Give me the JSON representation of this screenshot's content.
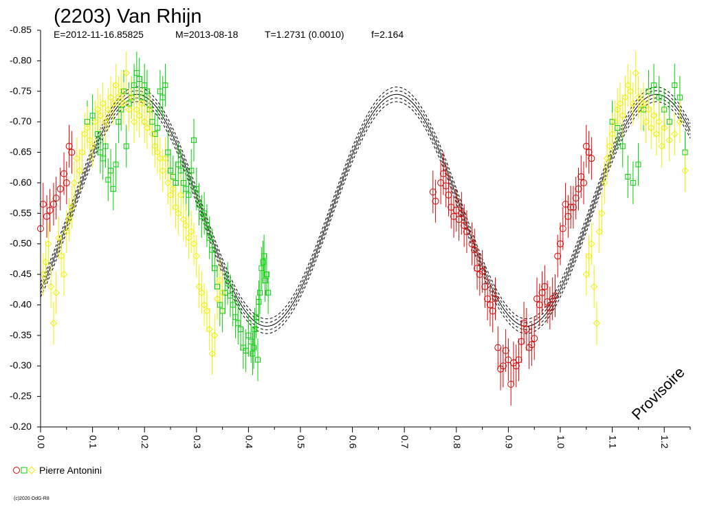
{
  "chart_data": {
    "type": "scatter",
    "title": "(2203) Van Rhijn",
    "subtitle_parts": [
      "E=2012-11-16.85825",
      "M=2013-08-18",
      "T=1.2731 (0.0010)",
      "f=2.164"
    ],
    "xlim": [
      0.0,
      1.25
    ],
    "ylim": [
      -0.85,
      -0.2
    ],
    "y_inverted": true,
    "x_ticks": [
      "0.0",
      "0.1",
      "0.2",
      "0.3",
      "0.4",
      "0.5",
      "0.6",
      "0.7",
      "0.8",
      "0.9",
      "1.0",
      "1.1",
      "1.2"
    ],
    "y_ticks": [
      "-0.85",
      "-0.80",
      "-0.75",
      "-0.70",
      "-0.65",
      "-0.60",
      "-0.55",
      "-0.50",
      "-0.45",
      "-0.40",
      "-0.35",
      "-0.30",
      "-0.25",
      "-0.20"
    ],
    "legend": {
      "label": "Pierre Antonini",
      "placement": "bottom-left"
    },
    "watermark": "Provisoire",
    "copyright": "(c)2020 OdG-R8",
    "fit_model": {
      "description": "fourier fit curve with uncertainty envelopes",
      "mean": -0.555,
      "amplitude": 0.19,
      "max_phase": 0.185,
      "second_harmonic_amp": 0.0,
      "envelope_offsets": [
        -0.012,
        -0.006,
        0.006,
        0.012
      ]
    },
    "series": [
      {
        "marker": "circle",
        "color": "#e00000",
        "points": [
          [
            0.0,
            -0.525
          ],
          [
            0.005,
            -0.565
          ],
          [
            0.012,
            -0.545
          ],
          [
            0.018,
            -0.555
          ],
          [
            0.025,
            -0.565
          ],
          [
            0.03,
            -0.575
          ],
          [
            0.038,
            -0.59
          ],
          [
            0.045,
            -0.615
          ],
          [
            0.05,
            -0.6
          ],
          [
            0.055,
            -0.66
          ],
          [
            0.06,
            -0.65
          ],
          [
            0.755,
            -0.585
          ],
          [
            0.76,
            -0.57
          ],
          [
            0.77,
            -0.6
          ],
          [
            0.775,
            -0.615
          ],
          [
            0.78,
            -0.595
          ],
          [
            0.785,
            -0.58
          ],
          [
            0.79,
            -0.56
          ],
          [
            0.795,
            -0.545
          ],
          [
            0.8,
            -0.555
          ],
          [
            0.805,
            -0.54
          ],
          [
            0.81,
            -0.55
          ],
          [
            0.815,
            -0.53
          ],
          [
            0.82,
            -0.52
          ],
          [
            0.83,
            -0.5
          ],
          [
            0.835,
            -0.49
          ],
          [
            0.84,
            -0.46
          ],
          [
            0.845,
            -0.45
          ],
          [
            0.85,
            -0.455
          ],
          [
            0.855,
            -0.43
          ],
          [
            0.86,
            -0.41
          ],
          [
            0.865,
            -0.4
          ],
          [
            0.87,
            -0.39
          ],
          [
            0.875,
            -0.41
          ],
          [
            0.88,
            -0.33
          ],
          [
            0.885,
            -0.295
          ],
          [
            0.89,
            -0.3
          ],
          [
            0.895,
            -0.325
          ],
          [
            0.9,
            -0.31
          ],
          [
            0.905,
            -0.27
          ],
          [
            0.91,
            -0.305
          ],
          [
            0.915,
            -0.3
          ],
          [
            0.92,
            -0.31
          ],
          [
            0.925,
            -0.34
          ],
          [
            0.93,
            -0.37
          ],
          [
            0.935,
            -0.36
          ],
          [
            0.94,
            -0.33
          ],
          [
            0.945,
            -0.335
          ],
          [
            0.95,
            -0.345
          ],
          [
            0.955,
            -0.41
          ],
          [
            0.96,
            -0.4
          ],
          [
            0.965,
            -0.42
          ],
          [
            0.97,
            -0.43
          ],
          [
            0.975,
            -0.405
          ],
          [
            0.98,
            -0.395
          ],
          [
            0.985,
            -0.41
          ],
          [
            0.99,
            -0.415
          ],
          [
            0.995,
            -0.48
          ],
          [
            1.0,
            -0.5
          ],
          [
            1.005,
            -0.525
          ],
          [
            1.01,
            -0.565
          ],
          [
            1.015,
            -0.545
          ],
          [
            1.02,
            -0.56
          ],
          [
            1.025,
            -0.56
          ],
          [
            1.03,
            -0.575
          ],
          [
            1.035,
            -0.59
          ],
          [
            1.04,
            -0.61
          ],
          [
            1.045,
            -0.6
          ],
          [
            1.05,
            -0.66
          ],
          [
            1.055,
            -0.65
          ],
          [
            1.06,
            -0.64
          ]
        ]
      },
      {
        "marker": "square",
        "color": "#00d000",
        "points": [
          [
            0.09,
            -0.7
          ],
          [
            0.1,
            -0.71
          ],
          [
            0.11,
            -0.68
          ],
          [
            0.115,
            -0.65
          ],
          [
            0.12,
            -0.64
          ],
          [
            0.125,
            -0.66
          ],
          [
            0.13,
            -0.605
          ],
          [
            0.135,
            -0.62
          ],
          [
            0.14,
            -0.59
          ],
          [
            0.145,
            -0.63
          ],
          [
            0.15,
            -0.7
          ],
          [
            0.155,
            -0.72
          ],
          [
            0.16,
            -0.75
          ],
          [
            0.165,
            -0.66
          ],
          [
            0.17,
            -0.73
          ],
          [
            0.175,
            -0.74
          ],
          [
            0.18,
            -0.76
          ],
          [
            0.185,
            -0.78
          ],
          [
            0.19,
            -0.77
          ],
          [
            0.195,
            -0.74
          ],
          [
            0.2,
            -0.76
          ],
          [
            0.205,
            -0.75
          ],
          [
            0.21,
            -0.72
          ],
          [
            0.215,
            -0.7
          ],
          [
            0.22,
            -0.68
          ],
          [
            0.225,
            -0.69
          ],
          [
            0.23,
            -0.75
          ],
          [
            0.235,
            -0.74
          ],
          [
            0.24,
            -0.76
          ],
          [
            0.245,
            -0.65
          ],
          [
            0.25,
            -0.62
          ],
          [
            0.255,
            -0.61
          ],
          [
            0.26,
            -0.6
          ],
          [
            0.265,
            -0.63
          ],
          [
            0.27,
            -0.62
          ],
          [
            0.275,
            -0.6
          ],
          [
            0.28,
            -0.59
          ],
          [
            0.285,
            -0.58
          ],
          [
            0.29,
            -0.62
          ],
          [
            0.295,
            -0.67
          ],
          [
            0.3,
            -0.59
          ],
          [
            0.305,
            -0.565
          ],
          [
            0.31,
            -0.545
          ],
          [
            0.315,
            -0.55
          ],
          [
            0.32,
            -0.53
          ],
          [
            0.325,
            -0.51
          ],
          [
            0.33,
            -0.49
          ],
          [
            0.335,
            -0.46
          ],
          [
            0.34,
            -0.43
          ],
          [
            0.345,
            -0.4
          ],
          [
            0.35,
            -0.39
          ],
          [
            0.355,
            -0.42
          ],
          [
            0.36,
            -0.435
          ],
          [
            0.365,
            -0.415
          ],
          [
            0.37,
            -0.4
          ],
          [
            0.375,
            -0.38
          ],
          [
            0.38,
            -0.37
          ],
          [
            0.385,
            -0.36
          ],
          [
            0.39,
            -0.33
          ],
          [
            0.395,
            -0.325
          ],
          [
            0.4,
            -0.35
          ],
          [
            0.405,
            -0.34
          ],
          [
            0.408,
            -0.32
          ],
          [
            0.41,
            -0.33
          ],
          [
            0.412,
            -0.36
          ],
          [
            0.415,
            -0.38
          ],
          [
            0.418,
            -0.31
          ],
          [
            0.42,
            -0.405
          ],
          [
            0.422,
            -0.42
          ],
          [
            0.425,
            -0.46
          ],
          [
            0.428,
            -0.47
          ],
          [
            0.43,
            -0.48
          ],
          [
            0.432,
            -0.44
          ],
          [
            0.435,
            -0.45
          ],
          [
            0.438,
            -0.42
          ],
          [
            1.1,
            -0.7
          ],
          [
            1.11,
            -0.69
          ],
          [
            1.12,
            -0.66
          ],
          [
            1.13,
            -0.61
          ],
          [
            1.14,
            -0.6
          ],
          [
            1.15,
            -0.63
          ],
          [
            1.16,
            -0.72
          ],
          [
            1.17,
            -0.75
          ],
          [
            1.18,
            -0.76
          ],
          [
            1.19,
            -0.74
          ],
          [
            1.2,
            -0.72
          ],
          [
            1.21,
            -0.7
          ],
          [
            1.22,
            -0.76
          ],
          [
            1.23,
            -0.74
          ],
          [
            1.24,
            -0.65
          ]
        ]
      },
      {
        "marker": "diamond",
        "color": "#f0f000",
        "points": [
          [
            0.005,
            -0.45
          ],
          [
            0.01,
            -0.47
          ],
          [
            0.015,
            -0.5
          ],
          [
            0.02,
            -0.43
          ],
          [
            0.025,
            -0.37
          ],
          [
            0.03,
            -0.42
          ],
          [
            0.035,
            -0.51
          ],
          [
            0.04,
            -0.48
          ],
          [
            0.045,
            -0.45
          ],
          [
            0.05,
            -0.52
          ],
          [
            0.055,
            -0.54
          ],
          [
            0.06,
            -0.56
          ],
          [
            0.065,
            -0.6
          ],
          [
            0.07,
            -0.64
          ],
          [
            0.075,
            -0.62
          ],
          [
            0.08,
            -0.65
          ],
          [
            0.085,
            -0.68
          ],
          [
            0.09,
            -0.69
          ],
          [
            0.095,
            -0.67
          ],
          [
            0.1,
            -0.66
          ],
          [
            0.105,
            -0.7
          ],
          [
            0.11,
            -0.72
          ],
          [
            0.115,
            -0.71
          ],
          [
            0.12,
            -0.73
          ],
          [
            0.125,
            -0.7
          ],
          [
            0.13,
            -0.72
          ],
          [
            0.135,
            -0.74
          ],
          [
            0.14,
            -0.73
          ],
          [
            0.145,
            -0.76
          ],
          [
            0.15,
            -0.74
          ],
          [
            0.155,
            -0.75
          ],
          [
            0.16,
            -0.73
          ],
          [
            0.165,
            -0.78
          ],
          [
            0.17,
            -0.72
          ],
          [
            0.175,
            -0.74
          ],
          [
            0.18,
            -0.7
          ],
          [
            0.185,
            -0.72
          ],
          [
            0.19,
            -0.71
          ],
          [
            0.195,
            -0.73
          ],
          [
            0.2,
            -0.7
          ],
          [
            0.205,
            -0.69
          ],
          [
            0.21,
            -0.72
          ],
          [
            0.215,
            -0.68
          ],
          [
            0.22,
            -0.66
          ],
          [
            0.225,
            -0.65
          ],
          [
            0.23,
            -0.64
          ],
          [
            0.235,
            -0.62
          ],
          [
            0.24,
            -0.64
          ],
          [
            0.245,
            -0.6
          ],
          [
            0.25,
            -0.58
          ],
          [
            0.255,
            -0.59
          ],
          [
            0.26,
            -0.56
          ],
          [
            0.265,
            -0.55
          ],
          [
            0.27,
            -0.58
          ],
          [
            0.275,
            -0.54
          ],
          [
            0.28,
            -0.53
          ],
          [
            0.285,
            -0.51
          ],
          [
            0.29,
            -0.52
          ],
          [
            0.295,
            -0.5
          ],
          [
            0.3,
            -0.48
          ],
          [
            0.305,
            -0.43
          ],
          [
            0.31,
            -0.42
          ],
          [
            0.315,
            -0.4
          ],
          [
            0.32,
            -0.39
          ],
          [
            0.325,
            -0.36
          ],
          [
            0.33,
            -0.32
          ],
          [
            0.335,
            -0.35
          ],
          [
            0.34,
            -0.41
          ],
          [
            0.345,
            -0.44
          ],
          [
            0.35,
            -0.42
          ],
          [
            1.05,
            -0.45
          ],
          [
            1.055,
            -0.48
          ],
          [
            1.06,
            -0.5
          ],
          [
            1.065,
            -0.43
          ],
          [
            1.07,
            -0.37
          ],
          [
            1.075,
            -0.52
          ],
          [
            1.08,
            -0.55
          ],
          [
            1.085,
            -0.6
          ],
          [
            1.09,
            -0.64
          ],
          [
            1.095,
            -0.66
          ],
          [
            1.1,
            -0.68
          ],
          [
            1.105,
            -0.7
          ],
          [
            1.11,
            -0.72
          ],
          [
            1.115,
            -0.73
          ],
          [
            1.12,
            -0.71
          ],
          [
            1.125,
            -0.74
          ],
          [
            1.13,
            -0.76
          ],
          [
            1.135,
            -0.75
          ],
          [
            1.14,
            -0.73
          ],
          [
            1.145,
            -0.78
          ],
          [
            1.15,
            -0.74
          ],
          [
            1.155,
            -0.72
          ],
          [
            1.16,
            -0.73
          ],
          [
            1.165,
            -0.7
          ],
          [
            1.17,
            -0.72
          ],
          [
            1.175,
            -0.69
          ],
          [
            1.18,
            -0.71
          ],
          [
            1.185,
            -0.68
          ],
          [
            1.19,
            -0.7
          ],
          [
            1.195,
            -0.66
          ],
          [
            1.2,
            -0.69
          ],
          [
            1.21,
            -0.67
          ],
          [
            1.22,
            -0.68
          ],
          [
            1.23,
            -0.7
          ],
          [
            1.24,
            -0.62
          ]
        ]
      }
    ]
  }
}
